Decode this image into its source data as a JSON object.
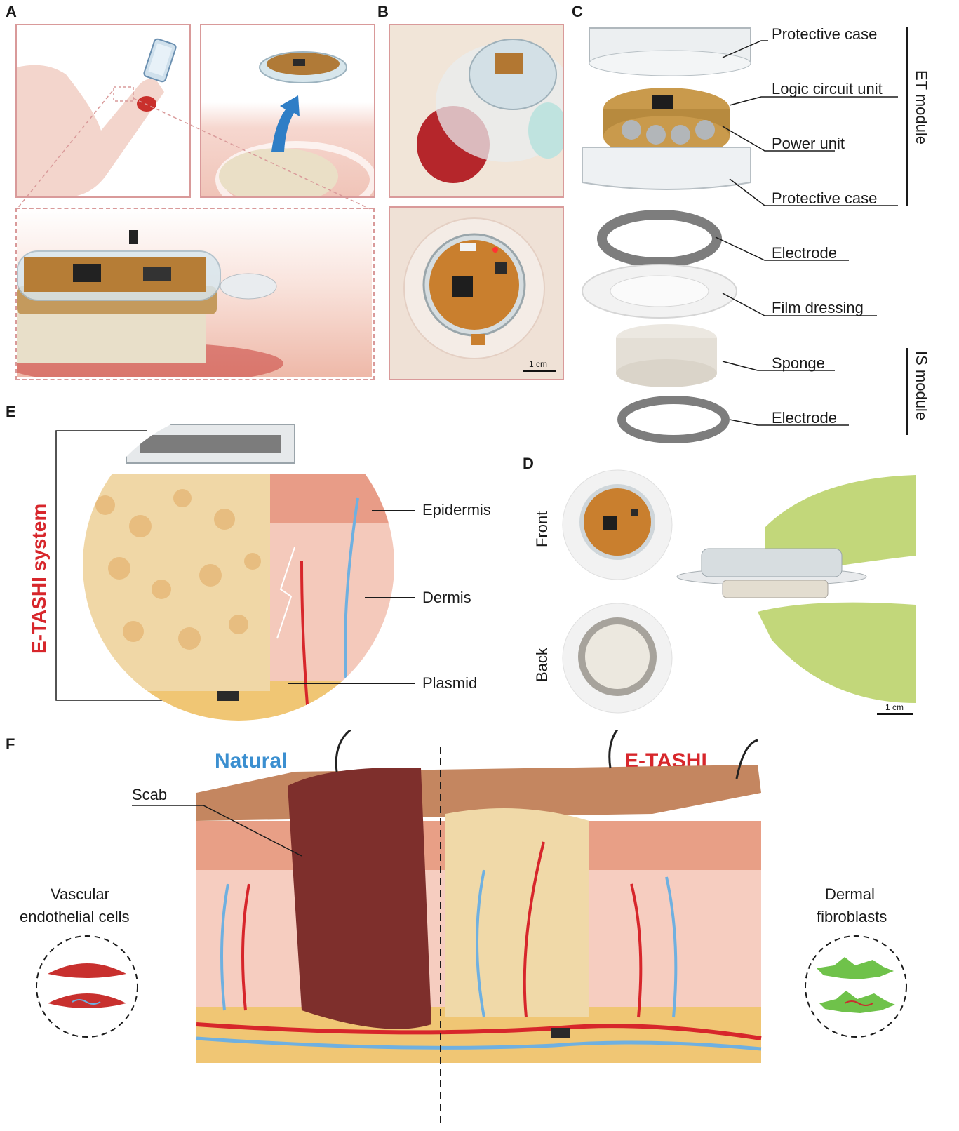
{
  "panels": {
    "a": "A",
    "b": "B",
    "c": "C",
    "d": "D",
    "e": "E",
    "f": "F"
  },
  "panel_c": {
    "labels": [
      "Protective case",
      "Logic circuit unit",
      "Power unit",
      "Protective case",
      "Electrode",
      "Film dressing",
      "Sponge",
      "Electrode"
    ],
    "et_module": "ET module",
    "is_module": "IS module"
  },
  "panel_b": {
    "scale": "1 cm"
  },
  "panel_d": {
    "front": "Front",
    "back": "Back",
    "scale": "1 cm"
  },
  "panel_e": {
    "system": "E-TASHI system",
    "epidermis": "Epidermis",
    "dermis": "Dermis",
    "plasmid": "Plasmid"
  },
  "panel_f": {
    "natural": "Natural",
    "etashi": "E-TASHI",
    "scab": "Scab",
    "vascular_line1": "Vascular",
    "vascular_line2": "endothelial cells",
    "dermal_line1": "Dermal",
    "dermal_line2": "fibroblasts"
  },
  "colors": {
    "frame": "#d99a9a",
    "natural_blue": "#3b8fd0",
    "etashi_red": "#d7262b",
    "skin": "#f1c3b3",
    "wound": "#b8423e"
  }
}
